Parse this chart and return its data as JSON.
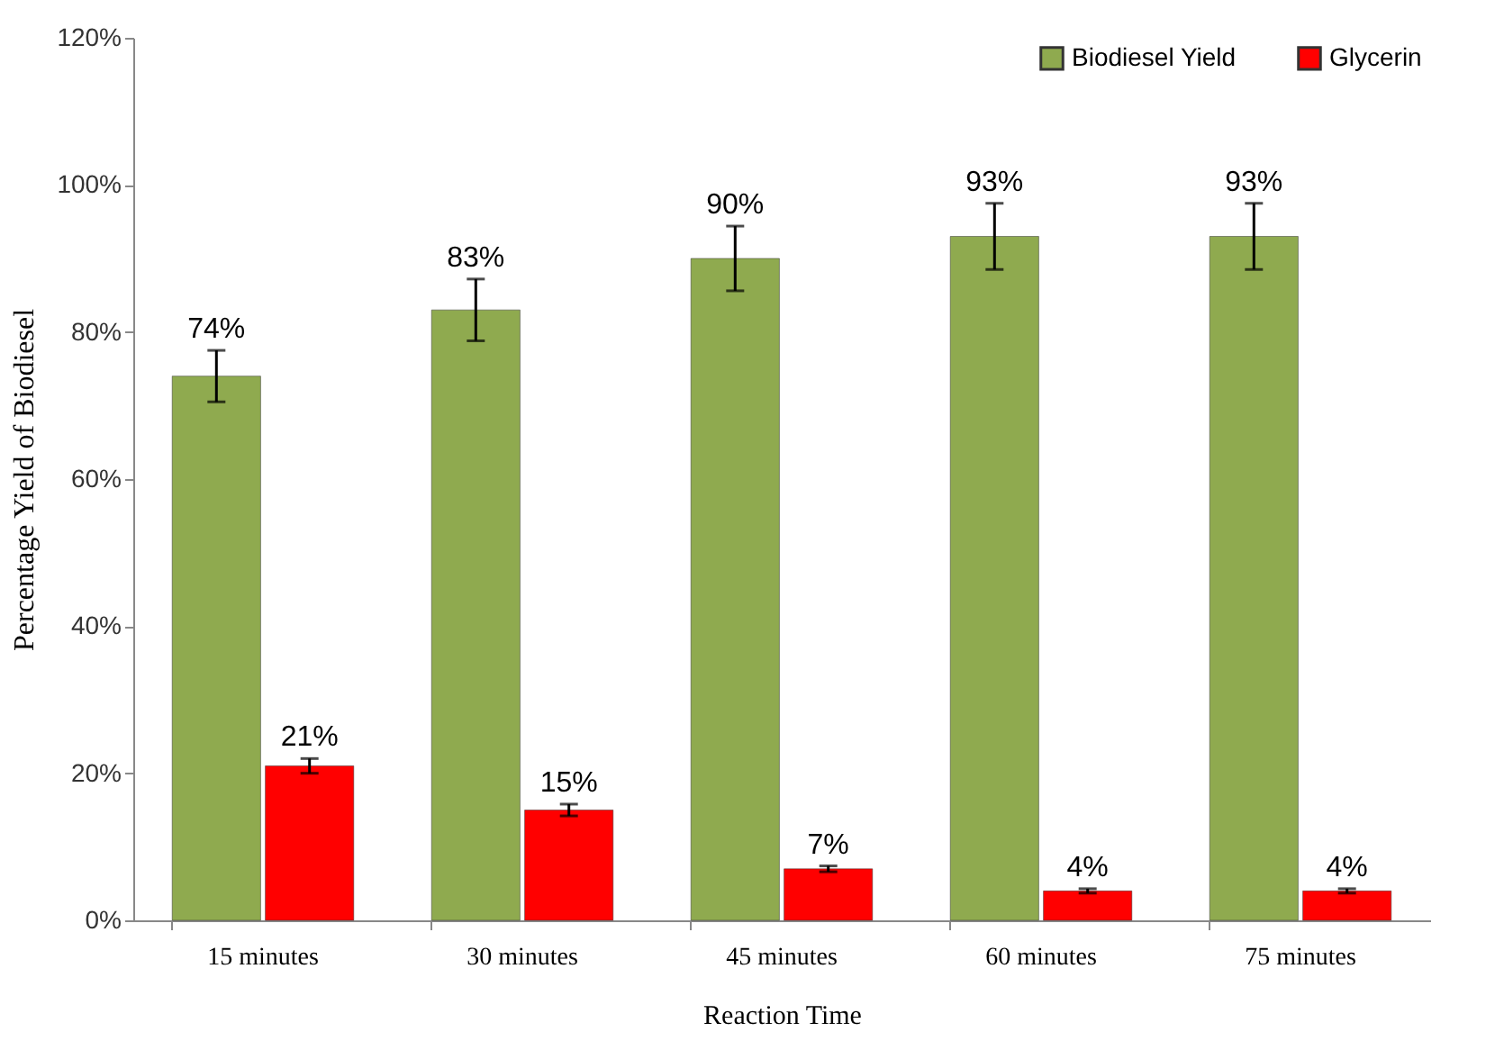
{
  "chart_data": {
    "type": "bar",
    "xlabel": "Reaction Time",
    "ylabel": "Percentage Yield of Biodiesel",
    "categories": [
      "15 minutes",
      "30 minutes",
      "45 minutes",
      "60 minutes",
      "75 minutes"
    ],
    "series": [
      {
        "name": "Biodiesel Yield",
        "color": "#8faa4f",
        "values": [
          74,
          83,
          90,
          93,
          93
        ],
        "errors": [
          3.5,
          4.2,
          4.4,
          4.5,
          4.5
        ],
        "value_labels": [
          "74%",
          "83%",
          "90%",
          "93%",
          "93%"
        ]
      },
      {
        "name": "Glycerin",
        "color": "#ff0000",
        "values": [
          21,
          15,
          7,
          4,
          4
        ],
        "errors": [
          1,
          0.8,
          0.4,
          0.3,
          0.3
        ],
        "value_labels": [
          "21%",
          "15%",
          "7%",
          "4%",
          "4%"
        ]
      }
    ],
    "ylim": [
      0,
      120
    ],
    "yticks": [
      {
        "value": 0,
        "label": "0%"
      },
      {
        "value": 20,
        "label": "20%"
      },
      {
        "value": 40,
        "label": "40%"
      },
      {
        "value": 60,
        "label": "60%"
      },
      {
        "value": 80,
        "label": "80%"
      },
      {
        "value": 100,
        "label": "100%"
      },
      {
        "value": 120,
        "label": "120%"
      }
    ],
    "grid": false,
    "legend": "top right"
  }
}
